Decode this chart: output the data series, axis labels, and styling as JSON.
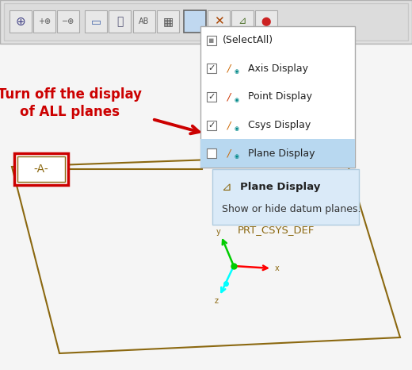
{
  "bg_color": "#ececec",
  "toolbar_bg": "#e0e0e0",
  "toolbar_border": "#b0b0b0",
  "dropdown_bg": "#ffffff",
  "dropdown_border": "#aaaaaa",
  "highlight_color": "#b8d8f0",
  "highlight_item": "Plane Display",
  "menu_items": [
    "(SelectAll)",
    "Axis Display",
    "Point Display",
    "Csys Display",
    "Plane Display"
  ],
  "menu_checked": [
    false,
    true,
    true,
    true,
    false
  ],
  "tooltip_bg": "#daeaf8",
  "tooltip_border": "#b0cce0",
  "tooltip_title": "Plane Display",
  "tooltip_text": "Show or hide datum planes.",
  "label_text": "Turn off the display\nof ALL planes",
  "label_color": "#cc0000",
  "plane_color": "#8B6810",
  "csys_label": "PRT_CSYS_DEF",
  "csys_color": "#8B6810",
  "datum_label": "-A-"
}
